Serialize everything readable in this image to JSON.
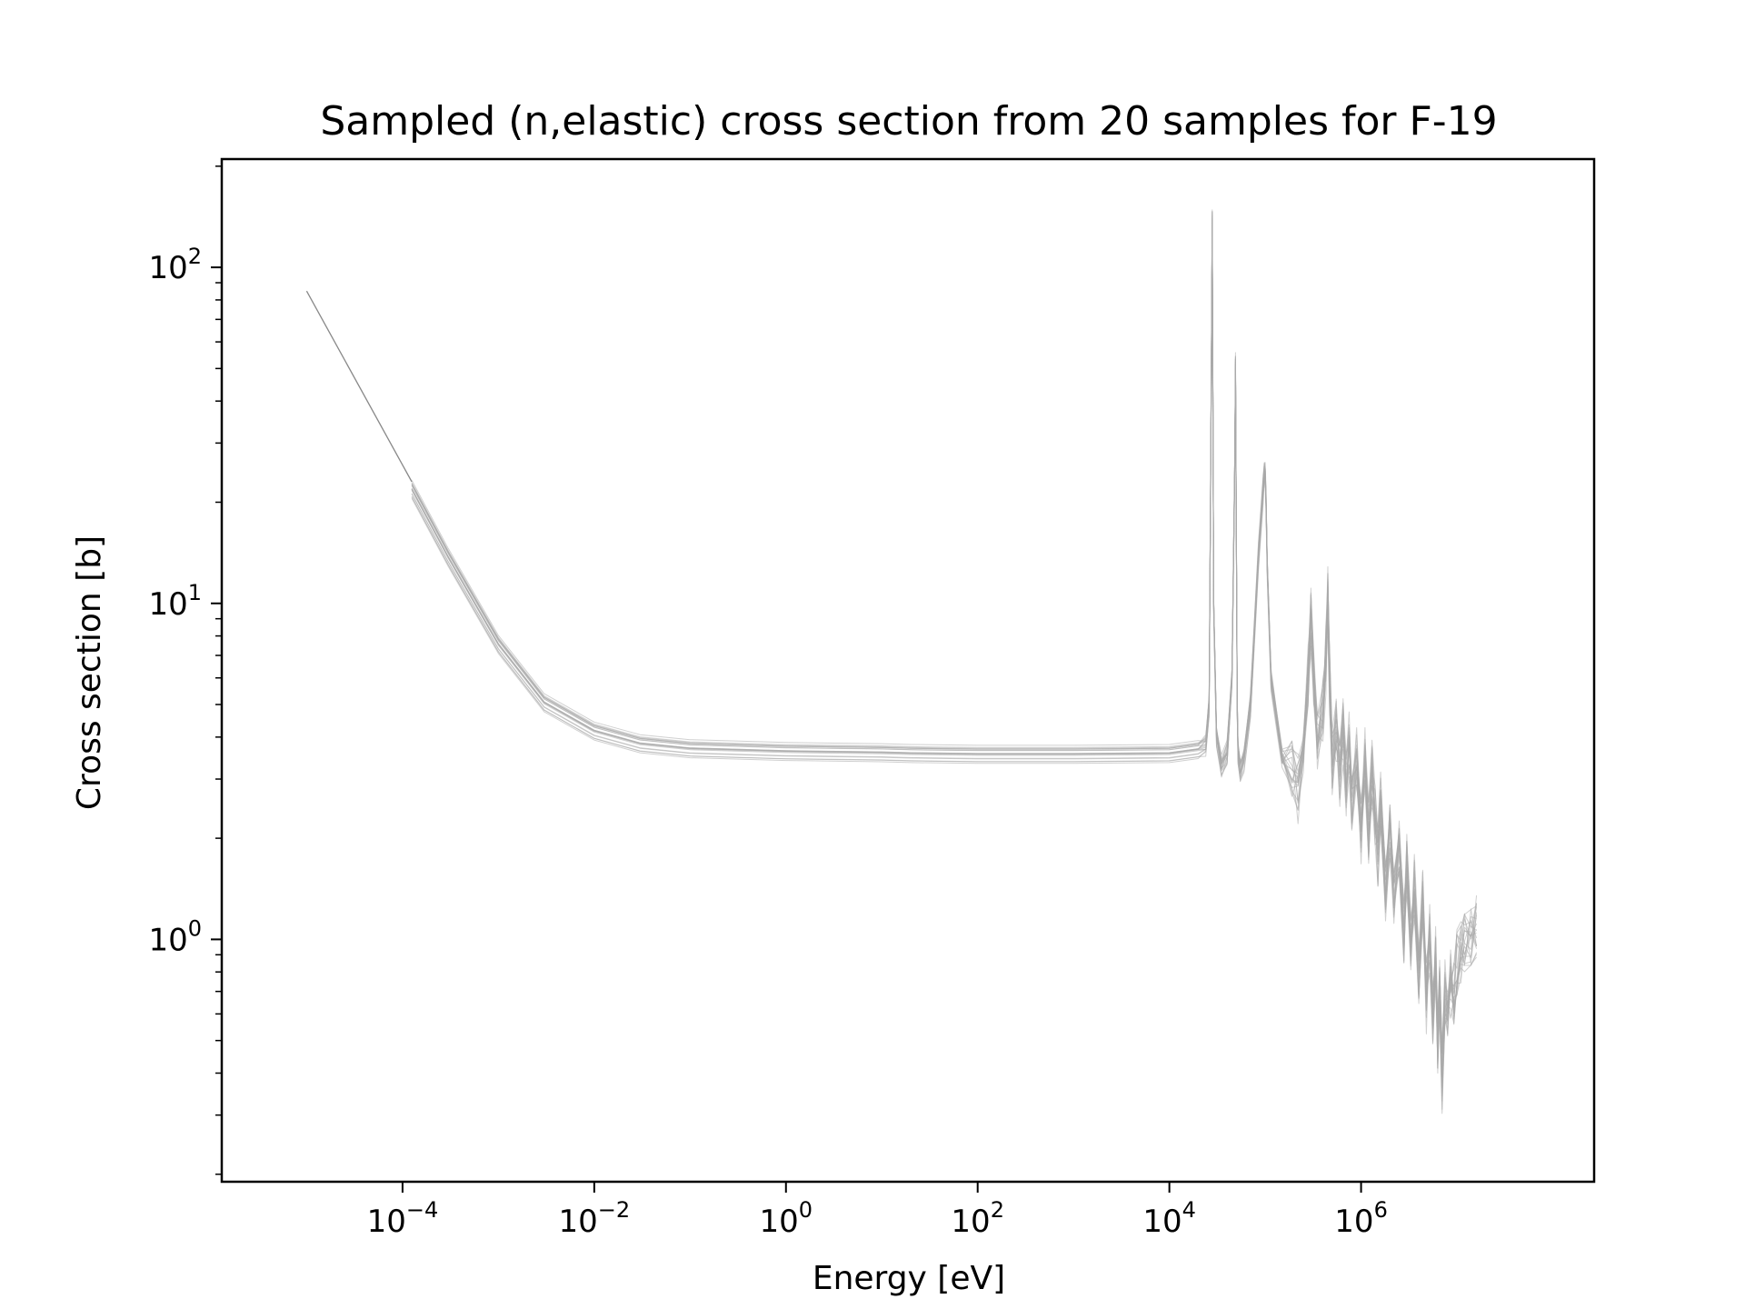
{
  "chart_data": {
    "type": "line",
    "title": "Sampled (n,elastic) cross section from 20 samples for F-19",
    "xlabel": "Energy [eV]",
    "ylabel": "Cross section [b]",
    "xscale": "log",
    "yscale": "log",
    "xlim": [
      1.3e-06,
      270000000.0
    ],
    "ylim": [
      0.19,
      210
    ],
    "grid": false,
    "legend": "none",
    "line_color": "#a9a9a9",
    "sample_count": 20,
    "x_ticks": [
      {
        "value": 0.0001,
        "base": "10",
        "exp": "−4"
      },
      {
        "value": 0.01,
        "base": "10",
        "exp": "−2"
      },
      {
        "value": 1,
        "base": "10",
        "exp": "0"
      },
      {
        "value": 100,
        "base": "10",
        "exp": "2"
      },
      {
        "value": 10000,
        "base": "10",
        "exp": "4"
      },
      {
        "value": 1000000,
        "base": "10",
        "exp": "6"
      }
    ],
    "y_ticks": [
      {
        "value": 1,
        "base": "10",
        "exp": "0"
      },
      {
        "value": 10,
        "base": "10",
        "exp": "1"
      },
      {
        "value": 100,
        "base": "10",
        "exp": "2"
      }
    ],
    "nominal": {
      "x": [
        1e-05,
        0.000125
      ],
      "y": [
        85,
        23
      ]
    },
    "samples": {
      "x": [
        0.000125,
        0.0003,
        0.001,
        0.003,
        0.01,
        0.03,
        0.1,
        1,
        10,
        20,
        100,
        1000,
        10000,
        20000,
        24000,
        26000,
        27000,
        28000,
        29000,
        31000,
        35000,
        40000,
        45000,
        48000,
        49000,
        50000,
        51000,
        52000,
        55000,
        60000,
        70000,
        85000,
        95000,
        98000,
        100000,
        102000,
        105000,
        115000,
        150000,
        190000,
        220000,
        250000,
        280000,
        300000,
        320000,
        350000,
        400000,
        430000,
        450000,
        470000,
        500000,
        550000,
        600000,
        650000,
        700000,
        750000,
        800000,
        900000,
        1000000,
        1100000,
        1200000,
        1300000,
        1400000,
        1500000,
        1600000,
        1800000,
        2000000,
        2200000,
        2500000,
        2800000,
        3000000,
        3300000,
        3600000,
        4000000,
        4400000,
        4800000,
        5200000,
        5600000,
        6000000,
        6300000,
        6600000,
        7000000,
        7500000,
        8000000,
        8600000,
        9300000,
        10000000,
        11000000,
        12000000,
        14000000,
        16000000
      ],
      "y": [
        22,
        13.8,
        7.6,
        5.1,
        4.2,
        3.85,
        3.72,
        3.65,
        3.62,
        3.6,
        3.58,
        3.58,
        3.6,
        3.7,
        3.8,
        5,
        25,
        140,
        10,
        4.1,
        3.3,
        3.6,
        6,
        25,
        52,
        15,
        5,
        3.6,
        3.2,
        3.5,
        5,
        14,
        22,
        25,
        24,
        20,
        13,
        6,
        3.5,
        3.3,
        2.9,
        3.5,
        6,
        9,
        6,
        4,
        5,
        7,
        10.5,
        6,
        3.5,
        4.3,
        3.2,
        4.3,
        3,
        3.8,
        2.6,
        3.6,
        2.2,
        3.5,
        2.1,
        3.2,
        2.4,
        1.8,
        2.6,
        1.5,
        2.1,
        1.4,
        1.9,
        1.1,
        1.7,
        0.95,
        1.45,
        0.8,
        1.3,
        0.7,
        1.05,
        0.6,
        0.9,
        0.5,
        0.75,
        0.4,
        0.7,
        0.6,
        0.78,
        0.7,
        0.85,
        0.95,
        1.0,
        1.05,
        1.1
      ]
    }
  }
}
